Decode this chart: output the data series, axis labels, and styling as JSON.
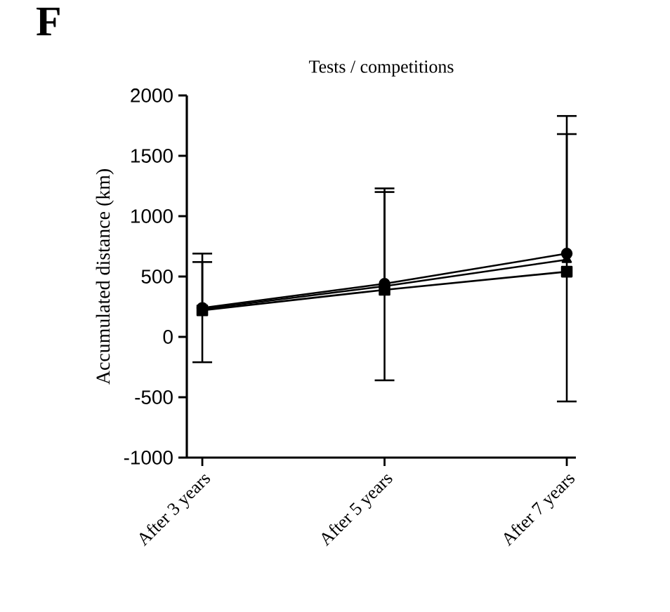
{
  "chart_data": {
    "type": "line",
    "title": "Tests / competitions",
    "ylabel": "Accumulated distance (km)",
    "annotations": [
      "F"
    ],
    "categories": [
      "After 3 years",
      "After 5 years",
      "After 7 years"
    ],
    "series": [
      {
        "color": "#000000",
        "marker": "circle",
        "values": [
          240,
          440,
          690
        ],
        "errors": [
          [
            -210,
            690
          ],
          [
            -360,
            1230
          ],
          [
            -535,
            1830
          ]
        ]
      },
      {
        "color": "#000000",
        "marker": "triangle",
        "values": [
          230,
          420,
          640
        ],
        "errors": [
          [
            230,
            620
          ],
          [
            420,
            1200
          ],
          [
            640,
            1680
          ]
        ]
      },
      {
        "color": "#000000",
        "marker": "square",
        "values": [
          220,
          390,
          540
        ]
      }
    ],
    "ylim": [
      -1000,
      2000
    ],
    "yticks": [
      -1000,
      -500,
      0,
      500,
      1000,
      1500,
      2000
    ],
    "line_style": "solid"
  }
}
